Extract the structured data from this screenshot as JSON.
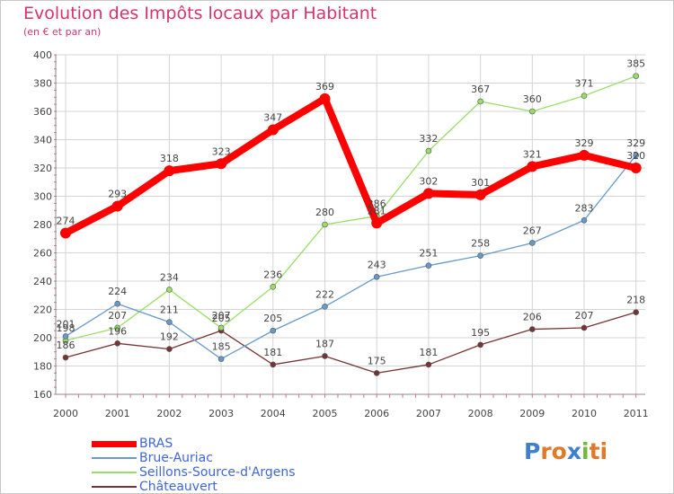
{
  "chart_data": {
    "type": "line",
    "title": "Evolution des Impôts locaux par Habitant",
    "subtitle": "(en € et par an)",
    "categories": [
      "2000",
      "2001",
      "2002",
      "2003",
      "2004",
      "2005",
      "2006",
      "2007",
      "2008",
      "2009",
      "2010",
      "2011"
    ],
    "ylim": [
      160,
      400
    ],
    "yticks": [
      160,
      180,
      200,
      220,
      240,
      260,
      280,
      300,
      320,
      340,
      360,
      380,
      400
    ],
    "grid": true,
    "series": [
      {
        "name": "BRAS",
        "color": "#ff0000",
        "values": [
          274,
          293,
          318,
          323,
          347,
          369,
          281,
          302,
          301,
          321,
          329,
          320
        ]
      },
      {
        "name": "Brue-Auriac",
        "color": "#6699cc",
        "values": [
          201,
          224,
          211,
          185,
          205,
          222,
          243,
          251,
          258,
          267,
          283,
          329
        ]
      },
      {
        "name": "Seillons-Source-d'Argens",
        "color": "#99dd66",
        "values": [
          198,
          207,
          234,
          207,
          236,
          280,
          286,
          332,
          367,
          360,
          371,
          385
        ]
      },
      {
        "name": "Châteauvert",
        "color": "#773333",
        "values": [
          186,
          196,
          192,
          205,
          181,
          187,
          175,
          181,
          195,
          206,
          207,
          218
        ]
      }
    ]
  },
  "logo": {
    "text": "Proxiti",
    "colors": [
      "#3f7fd0",
      "#e07a2a",
      "#e07a2a",
      "#3f7fd0",
      "#6fb83c",
      "#e07a2a",
      "#e07a2a"
    ]
  }
}
